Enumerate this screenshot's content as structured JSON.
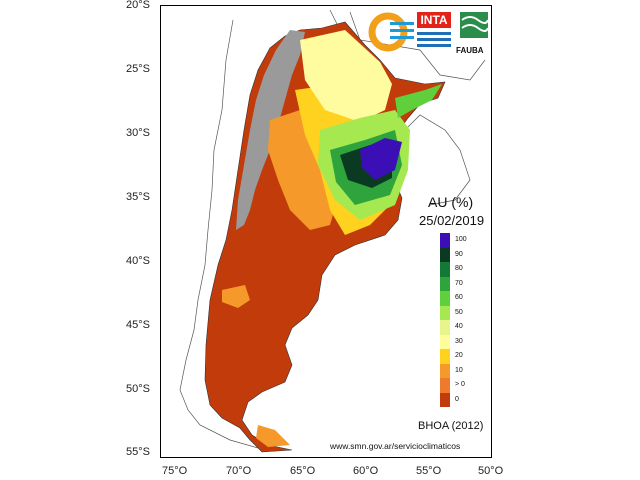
{
  "map": {
    "latitude_labels": [
      "20°S",
      "25°S",
      "30°S",
      "35°S",
      "40°S",
      "45°S",
      "50°S",
      "55°S"
    ],
    "longitude_labels": [
      "75°O",
      "70°O",
      "65°O",
      "60°O",
      "55°O",
      "50°O"
    ]
  },
  "legend": {
    "title": "AU (%)",
    "date": "25/02/2019",
    "classes": [
      {
        "label": "100",
        "color": "#3b0fb5"
      },
      {
        "label": "90",
        "color": "#0a3b22"
      },
      {
        "label": "80",
        "color": "#137a35"
      },
      {
        "label": "70",
        "color": "#2fa33c"
      },
      {
        "label": "60",
        "color": "#5fcf3b"
      },
      {
        "label": "50",
        "color": "#a5e84f"
      },
      {
        "label": "40",
        "color": "#e6f58c"
      },
      {
        "label": "30",
        "color": "#ffff99"
      },
      {
        "label": "20",
        "color": "#ffd21f"
      },
      {
        "label": "10",
        "color": "#f59a2a"
      },
      {
        "label": "> 0",
        "color": "#ee7a2e"
      },
      {
        "label": "0",
        "color": "#c23b0b"
      }
    ]
  },
  "model_label": "BHOA (2012)",
  "source_url": "www.smn.gov.ar/servicioclimaticos",
  "logos": {
    "inta": "INTA",
    "fauba": "FAUBA"
  }
}
